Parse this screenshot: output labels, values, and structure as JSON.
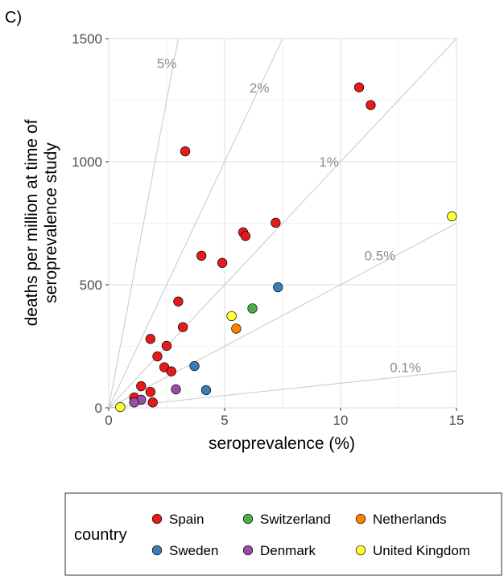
{
  "chart_data": {
    "type": "scatter",
    "panel_label": "C)",
    "xlabel": "seroprevalence (%)",
    "ylabel_lines": [
      "deaths per million at time of",
      "seroprevalence study"
    ],
    "xlim": [
      0,
      15
    ],
    "ylim": [
      0,
      1500
    ],
    "x_ticks": [
      0,
      5,
      10,
      15
    ],
    "y_ticks": [
      0,
      500,
      1000,
      1500
    ],
    "x_minor": [
      2.5,
      7.5,
      12.5
    ],
    "y_minor": [
      250,
      750,
      1250
    ],
    "grid": true,
    "reference_lines": [
      {
        "label": "5%",
        "ifr_percent": 5,
        "label_x": 2.5,
        "label_y": 1400
      },
      {
        "label": "2%",
        "ifr_percent": 2,
        "label_x": 6.5,
        "label_y": 1300
      },
      {
        "label": "1%",
        "ifr_percent": 1,
        "label_x": 9.5,
        "label_y": 1000
      },
      {
        "label": "0.5%",
        "ifr_percent": 0.5,
        "label_x": 11.7,
        "label_y": 620
      },
      {
        "label": "0.1%",
        "ifr_percent": 0.1,
        "label_x": 12.8,
        "label_y": 165
      }
    ],
    "legend": {
      "title": "country",
      "position": "bottom",
      "entries": [
        {
          "name": "Spain",
          "color": "#e41a1c"
        },
        {
          "name": "Switzerland",
          "color": "#4daf4a"
        },
        {
          "name": "Netherlands",
          "color": "#ff7f00"
        },
        {
          "name": "Sweden",
          "color": "#377eb8"
        },
        {
          "name": "Denmark",
          "color": "#984ea3"
        },
        {
          "name": "United Kingdom",
          "color": "#ffff33"
        }
      ]
    },
    "series": [
      {
        "name": "Spain",
        "color": "#e41a1c",
        "points": [
          [
            10.8,
            1302
          ],
          [
            11.3,
            1230
          ],
          [
            3.3,
            1042
          ],
          [
            7.2,
            752
          ],
          [
            5.8,
            713
          ],
          [
            5.9,
            698
          ],
          [
            4.0,
            618
          ],
          [
            4.9,
            589
          ],
          [
            3.0,
            432
          ],
          [
            3.2,
            328
          ],
          [
            1.8,
            280
          ],
          [
            2.5,
            252
          ],
          [
            2.1,
            209
          ],
          [
            2.4,
            165
          ],
          [
            2.7,
            148
          ],
          [
            1.4,
            88
          ],
          [
            1.8,
            65
          ],
          [
            1.1,
            42
          ],
          [
            1.9,
            22
          ]
        ]
      },
      {
        "name": "Switzerland",
        "color": "#4daf4a",
        "points": [
          [
            6.2,
            404
          ]
        ]
      },
      {
        "name": "Netherlands",
        "color": "#ff7f00",
        "points": [
          [
            5.5,
            322
          ]
        ]
      },
      {
        "name": "Sweden",
        "color": "#377eb8",
        "points": [
          [
            7.3,
            490
          ],
          [
            3.7,
            170
          ],
          [
            4.2,
            72
          ]
        ]
      },
      {
        "name": "Denmark",
        "color": "#984ea3",
        "points": [
          [
            2.9,
            75
          ],
          [
            1.4,
            33
          ],
          [
            1.1,
            22
          ]
        ]
      },
      {
        "name": "United Kingdom",
        "color": "#ffff33",
        "points": [
          [
            14.8,
            778
          ],
          [
            5.3,
            373
          ],
          [
            0.5,
            3
          ]
        ]
      }
    ]
  }
}
